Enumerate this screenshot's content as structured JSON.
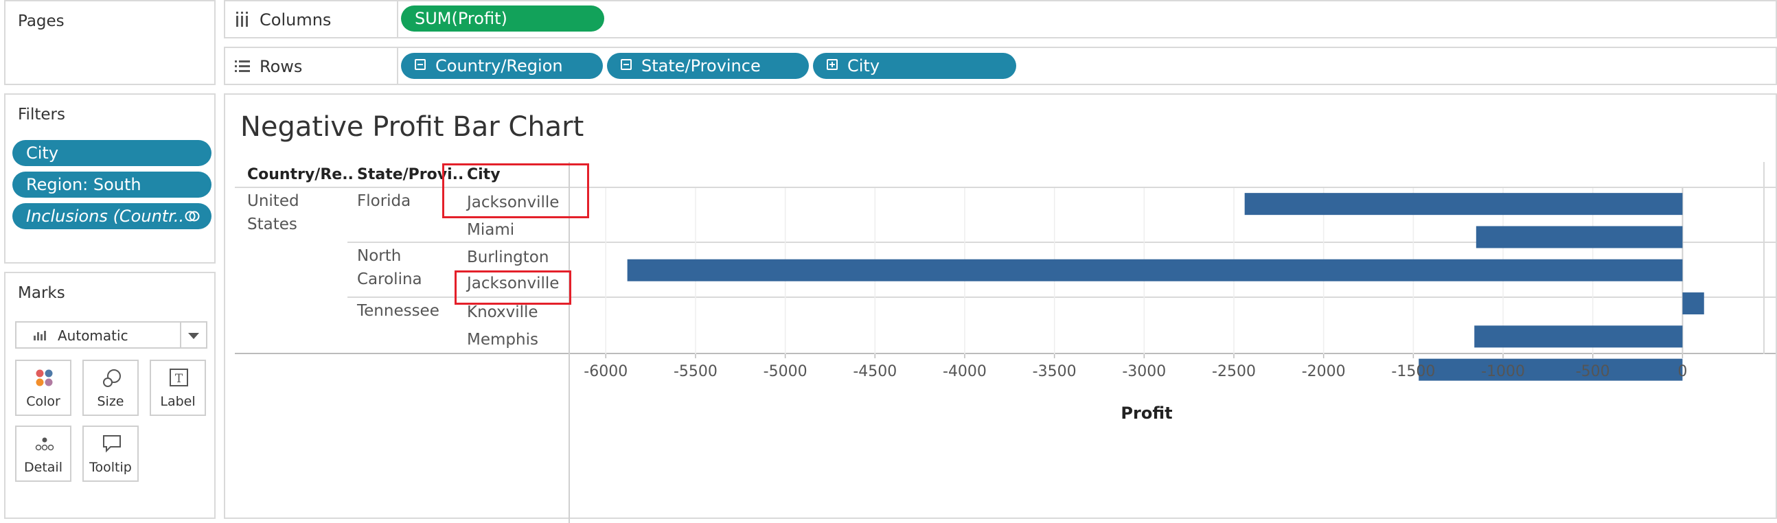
{
  "pages_panel": {
    "title": "Pages"
  },
  "filters_panel": {
    "title": "Filters",
    "pills": [
      "City",
      "Region: South",
      "Inclusions (Countr.."
    ]
  },
  "marks_panel": {
    "title": "Marks",
    "mark_type": "Automatic",
    "cards": [
      "Color",
      "Size",
      "Label",
      "Detail",
      "Tooltip"
    ]
  },
  "columns_shelf": {
    "label": "Columns",
    "pills": [
      "SUM(Profit)"
    ]
  },
  "rows_shelf": {
    "label": "Rows",
    "pills": [
      "Country/Region",
      "State/Province",
      "City"
    ]
  },
  "view": {
    "title": "Negative Profit Bar Chart",
    "headers": [
      "Country/Re..",
      "State/Provi..",
      "City"
    ],
    "country": [
      "United",
      "States"
    ],
    "states": {
      "florida": "Florida",
      "nc_line1": "North",
      "nc_line2": "Carolina",
      "tennessee": "Tennessee"
    },
    "cities": [
      "Jacksonville",
      "Miami",
      "Burlington",
      "Jacksonville",
      "Knoxville",
      "Memphis"
    ]
  },
  "chart_data": {
    "type": "bar",
    "orientation": "horizontal",
    "categories": [
      "Jacksonville",
      "Miami",
      "Burlington",
      "Jacksonville",
      "Knoxville",
      "Memphis"
    ],
    "values": [
      -2440,
      -1150,
      -5880,
      120,
      -1160,
      -1470
    ],
    "xlabel": "Profit",
    "xlim": [
      -6200,
      450
    ],
    "xticks": [
      -6000,
      -5500,
      -5000,
      -4500,
      -4000,
      -3500,
      -3000,
      -2500,
      -2000,
      -1500,
      -1000,
      -500,
      0
    ],
    "bar_color": "#33659a",
    "grid": true
  },
  "colors": {
    "pill_blue": "#1f87a8",
    "pill_green": "#12a25a",
    "highlight": "#e4202a"
  }
}
